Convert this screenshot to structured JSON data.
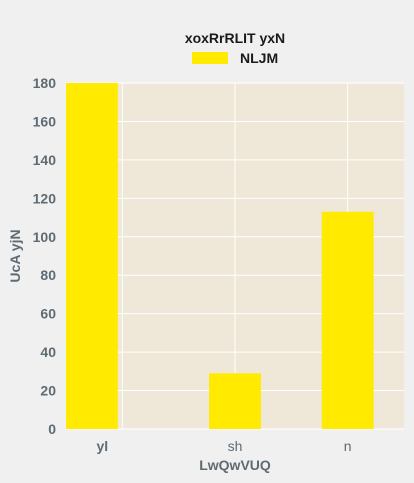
{
  "chart_data": {
    "type": "bar",
    "legend_title": "xoxRrRLIT yxN",
    "legend_position": "top-center",
    "series": [
      {
        "name": "NLJM",
        "values": [
          180,
          29,
          113
        ],
        "color": "#ffea00"
      }
    ],
    "categories": [
      "yl",
      "sh",
      "n"
    ],
    "xlabel": "LwQwVUQ",
    "ylabel": "UcA yjN",
    "ylim": [
      0,
      180
    ],
    "yticks": [
      0,
      20,
      40,
      60,
      80,
      100,
      120,
      140,
      160,
      180
    ],
    "grid": true,
    "plot_background": "#efe8d8",
    "grid_color": "#ffffff",
    "axis_text_color": "#5f6b73"
  }
}
